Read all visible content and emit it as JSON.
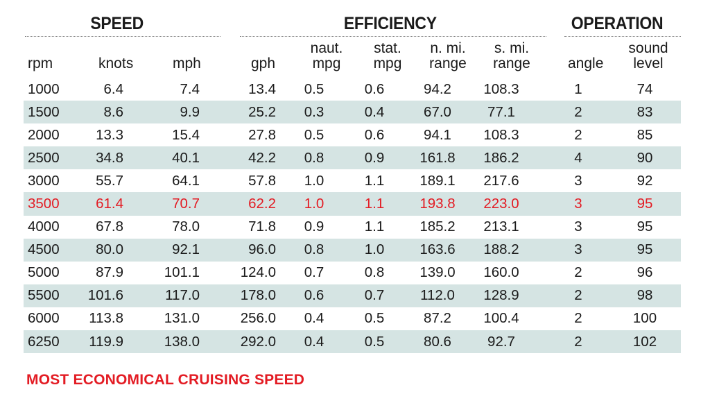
{
  "groups": {
    "speed": "SPEED",
    "efficiency": "EFFICIENCY",
    "operation": "OPERATION"
  },
  "headers": {
    "rpm": "rpm",
    "knots": "knots",
    "mph": "mph",
    "gph": "gph",
    "naut_mpg": "naut.\nmpg",
    "stat_mpg": "stat.\nmpg",
    "n_range": "n. mi.\nrange",
    "s_range": "s. mi.\nrange",
    "angle": "angle",
    "sound": "sound\nlevel"
  },
  "rows": [
    [
      "1000",
      "6.4",
      "7.4",
      "13.4",
      "0.5",
      "0.6",
      "94.2",
      "108.3",
      "1",
      "74"
    ],
    [
      "1500",
      "8.6",
      "9.9",
      "25.2",
      "0.3",
      "0.4",
      "67.0",
      "77.1",
      "2",
      "83"
    ],
    [
      "2000",
      "13.3",
      "15.4",
      "27.8",
      "0.5",
      "0.6",
      "94.1",
      "108.3",
      "2",
      "85"
    ],
    [
      "2500",
      "34.8",
      "40.1",
      "42.2",
      "0.8",
      "0.9",
      "161.8",
      "186.2",
      "4",
      "90"
    ],
    [
      "3000",
      "55.7",
      "64.1",
      "57.8",
      "1.0",
      "1.1",
      "189.1",
      "217.6",
      "3",
      "92"
    ],
    [
      "3500",
      "61.4",
      "70.7",
      "62.2",
      "1.0",
      "1.1",
      "193.8",
      "223.0",
      "3",
      "95"
    ],
    [
      "4000",
      "67.8",
      "78.0",
      "71.8",
      "0.9",
      "1.1",
      "185.2",
      "213.1",
      "3",
      "95"
    ],
    [
      "4500",
      "80.0",
      "92.1",
      "96.0",
      "0.8",
      "1.0",
      "163.6",
      "188.2",
      "3",
      "95"
    ],
    [
      "5000",
      "87.9",
      "101.1",
      "124.0",
      "0.7",
      "0.8",
      "139.0",
      "160.0",
      "2",
      "96"
    ],
    [
      "5500",
      "101.6",
      "117.0",
      "178.0",
      "0.6",
      "0.7",
      "112.0",
      "128.9",
      "2",
      "98"
    ],
    [
      "6000",
      "113.8",
      "131.0",
      "256.0",
      "0.4",
      "0.5",
      "87.2",
      "100.4",
      "2",
      "100"
    ],
    [
      "6250",
      "119.9",
      "138.0",
      "292.0",
      "0.4",
      "0.5",
      "80.6",
      "92.7",
      "2",
      "102"
    ]
  ],
  "highlight_row": "3500",
  "footnote": "MOST ECONOMICAL CRUISING SPEED",
  "colors": {
    "highlight": "#e31b23",
    "stripe": "#d5e4e3",
    "text": "#1a1a1a"
  }
}
